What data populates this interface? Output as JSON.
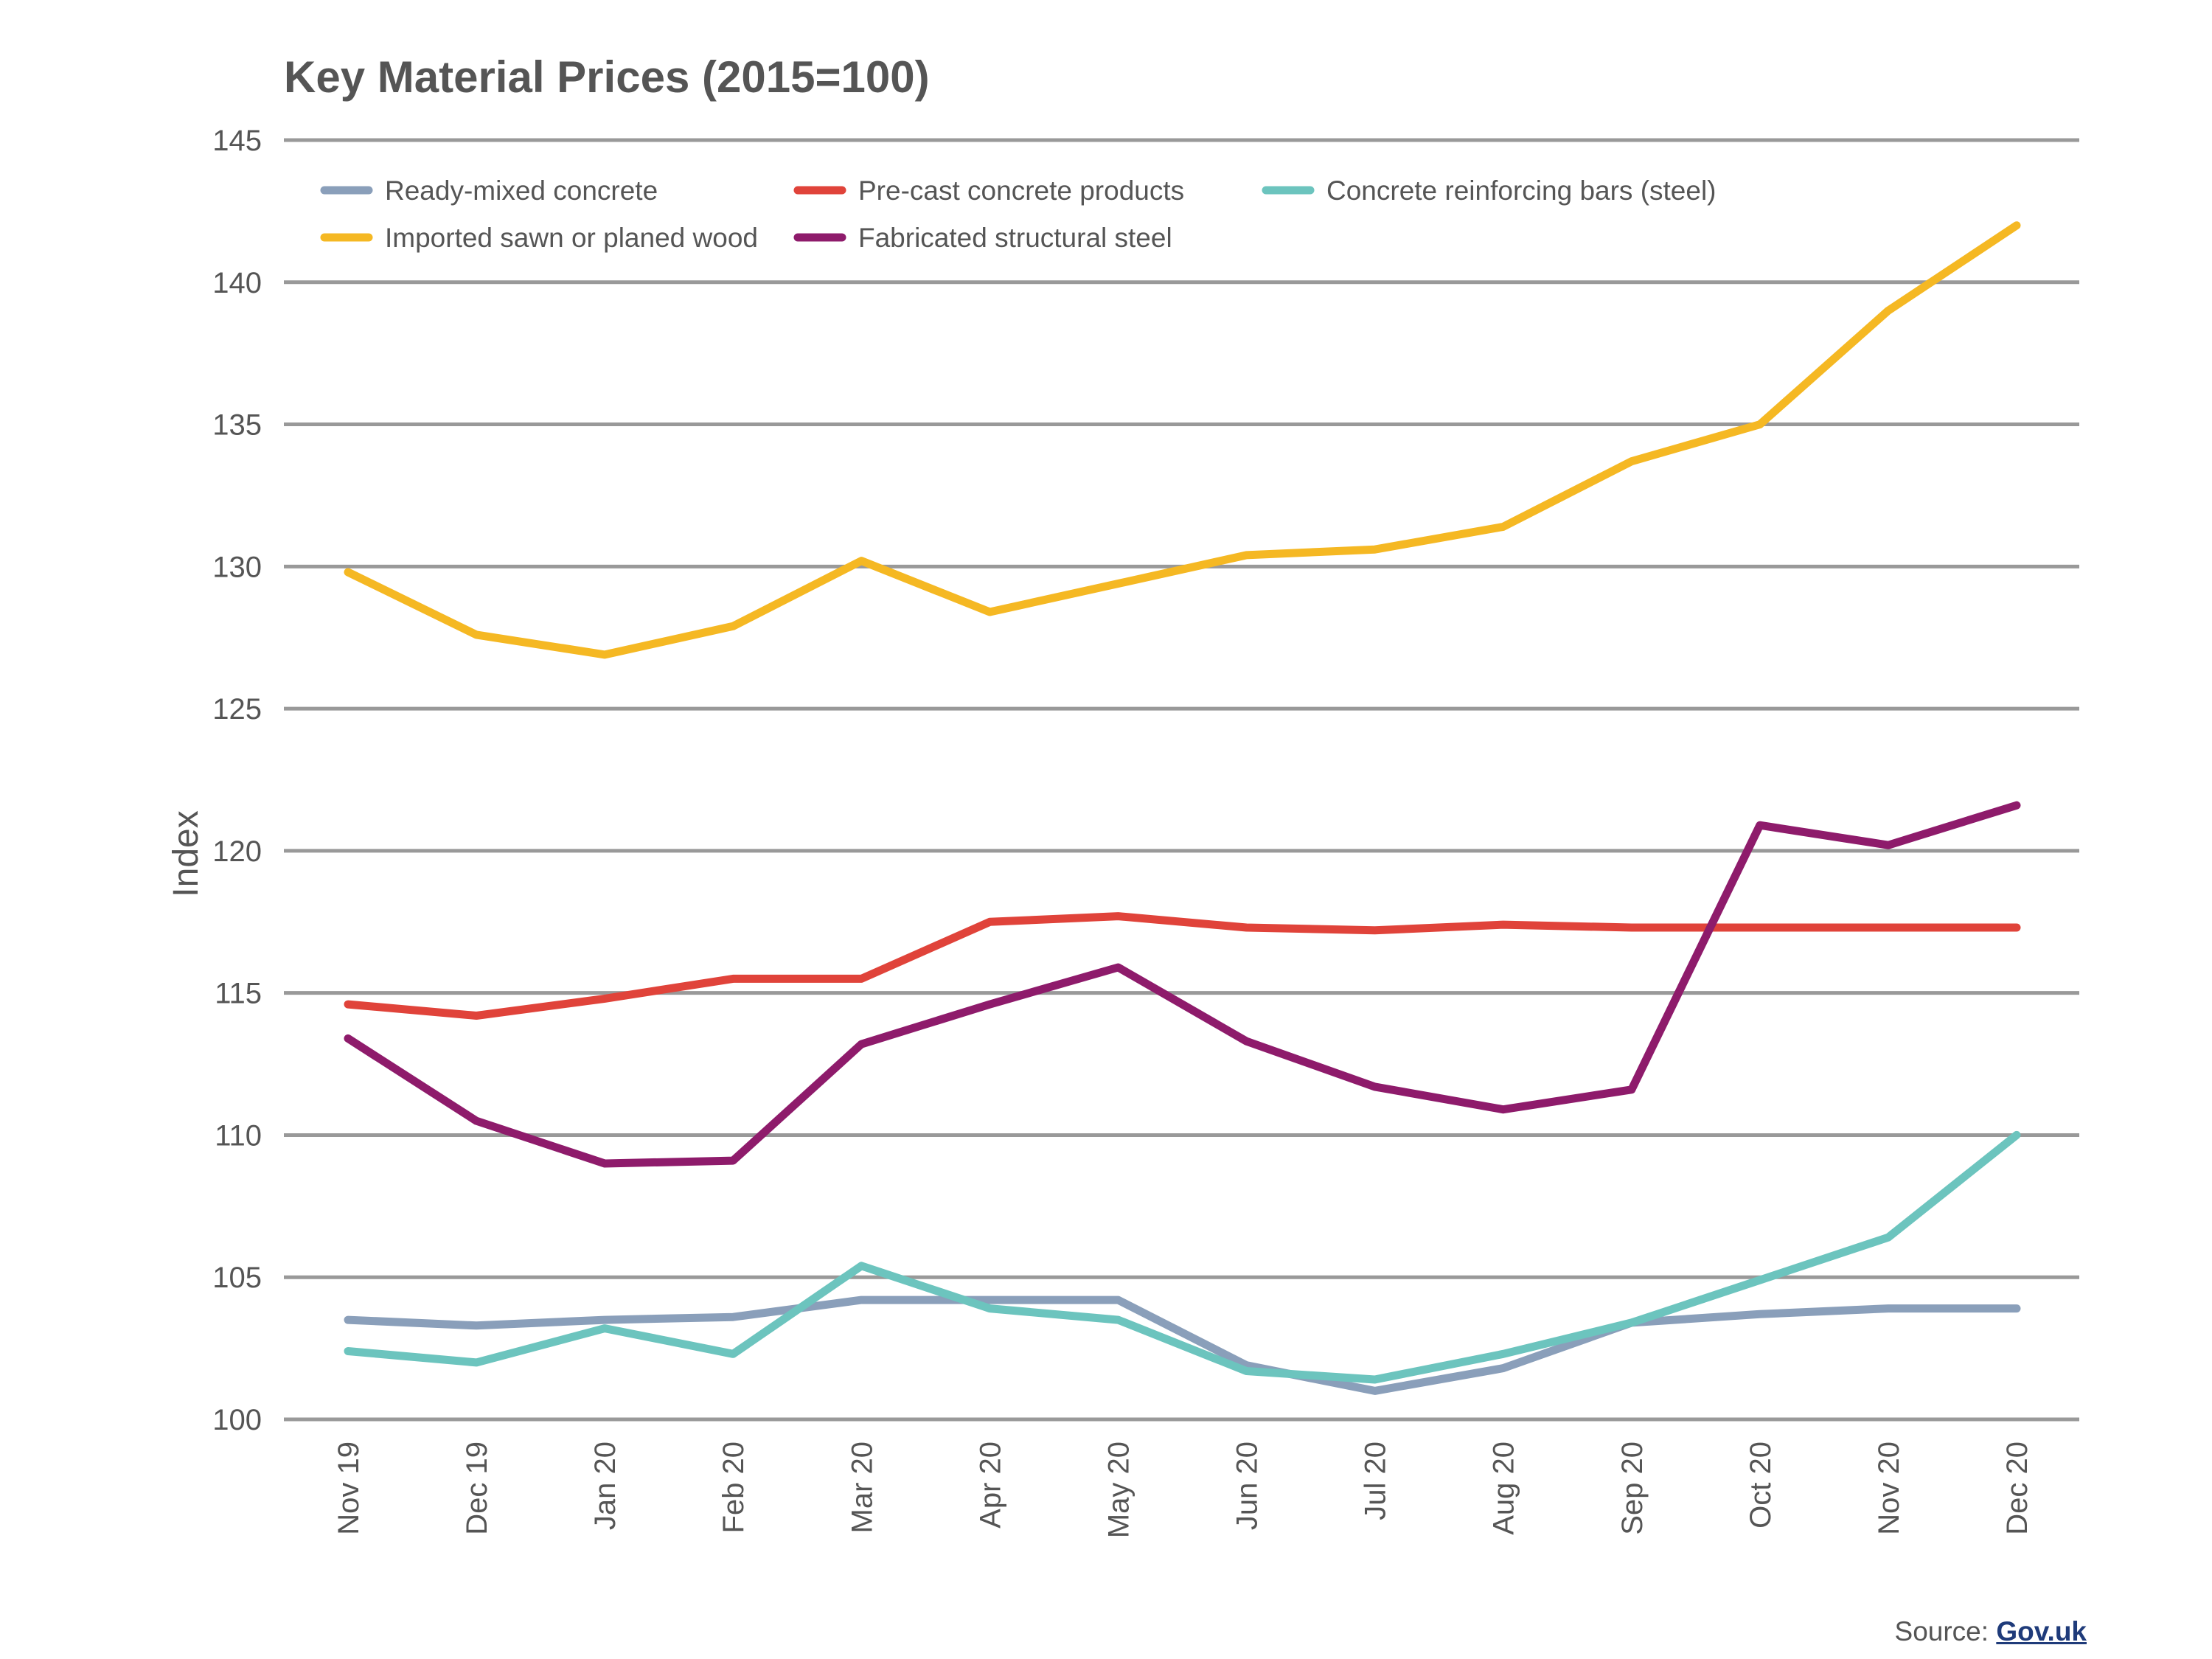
{
  "chart_data": {
    "type": "line",
    "title": "Key Material Prices (2015=100)",
    "xlabel": "",
    "ylabel": "Index",
    "ylim": [
      100,
      145
    ],
    "yticks": [
      100,
      105,
      110,
      115,
      120,
      125,
      130,
      135,
      140,
      145
    ],
    "grid": true,
    "legend_position": "top-left",
    "categories": [
      "Nov 19",
      "Dec 19",
      "Jan 20",
      "Feb 20",
      "Mar 20",
      "Apr 20",
      "May 20",
      "Jun 20",
      "Jul 20",
      "Aug 20",
      "Sep 20",
      "Oct 20",
      "Nov 20",
      "Dec 20"
    ],
    "series": [
      {
        "name": "Ready-mixed concrete",
        "color": "#8a9fba",
        "values": [
          103.5,
          103.3,
          103.5,
          103.6,
          104.2,
          104.2,
          104.2,
          101.9,
          101.0,
          101.8,
          103.4,
          103.7,
          103.9,
          103.9
        ]
      },
      {
        "name": "Pre-cast concrete products",
        "color": "#e0433a",
        "values": [
          114.6,
          114.2,
          114.8,
          115.5,
          115.5,
          117.5,
          117.7,
          117.3,
          117.2,
          117.4,
          117.3,
          117.3,
          117.3,
          117.3
        ]
      },
      {
        "name": "Concrete reinforcing bars (steel)",
        "color": "#6cc4be",
        "values": [
          102.4,
          102.0,
          103.2,
          102.3,
          105.4,
          103.9,
          103.5,
          101.7,
          101.4,
          102.3,
          103.4,
          104.9,
          106.4,
          110.0
        ]
      },
      {
        "name": "Imported sawn or planed wood",
        "color": "#f5b823",
        "values": [
          129.8,
          127.6,
          126.9,
          127.9,
          130.2,
          128.4,
          129.4,
          130.4,
          130.6,
          131.4,
          133.7,
          135.0,
          139.0,
          142.0
        ]
      },
      {
        "name": "Fabricated structural steel",
        "color": "#8e1b6b",
        "values": [
          113.4,
          110.5,
          109.0,
          109.1,
          113.2,
          114.6,
          115.9,
          113.3,
          111.7,
          110.9,
          111.6,
          120.9,
          120.2,
          121.6
        ]
      }
    ],
    "colors": {
      "grid": "#999999",
      "text": "#555555"
    }
  },
  "source": {
    "prefix": "Source:",
    "link_text": "Gov.uk"
  }
}
